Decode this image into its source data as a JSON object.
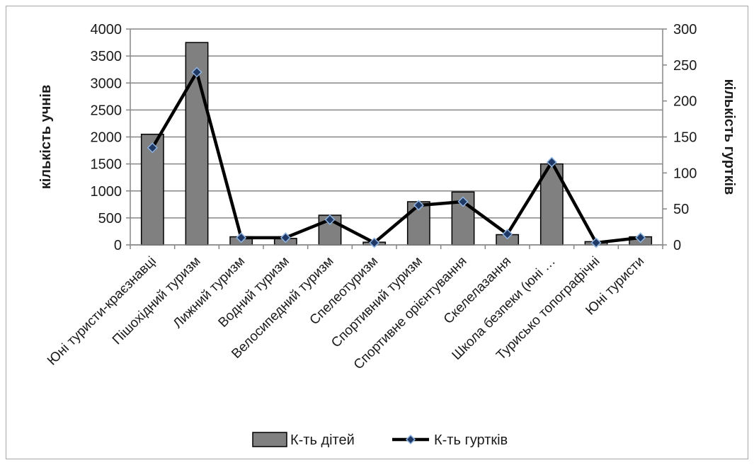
{
  "chart_data": {
    "type": "bar",
    "categories": [
      "Юні туристи-краєзнавці",
      "Пішохідний туризм",
      "Лижний туризм",
      "Водний туризм",
      "Велосипедний туризм",
      "Спелеотуризм",
      "Спортивний туризм",
      "Спортивне орієнтування",
      "Скелелазання",
      "Школа безпеки (юні …",
      "Турисько топографічні",
      "Юні туристи"
    ],
    "series": [
      {
        "name": "К-ть дітей",
        "type": "bar",
        "axis": "left",
        "color": "#808080",
        "values": [
          2050,
          3750,
          150,
          120,
          550,
          50,
          800,
          980,
          190,
          1500,
          60,
          150
        ]
      },
      {
        "name": "К-ть гуртків",
        "type": "line",
        "axis": "right",
        "color": "#000000",
        "marker_color": "#1f3864",
        "values": [
          135,
          240,
          10,
          10,
          35,
          3,
          55,
          60,
          15,
          115,
          3,
          10
        ]
      }
    ],
    "ylabel": "кількість учнів",
    "y2label": "кількість гуртків",
    "ylim": [
      0,
      4000
    ],
    "y2lim": [
      0,
      300
    ],
    "yticks": [
      "0",
      "500",
      "1000",
      "1500",
      "2000",
      "2500",
      "3000",
      "3500",
      "4000"
    ],
    "y2ticks": [
      "0",
      "50",
      "100",
      "150",
      "200",
      "250",
      "300"
    ],
    "grid": true,
    "legend_position": "bottom"
  }
}
